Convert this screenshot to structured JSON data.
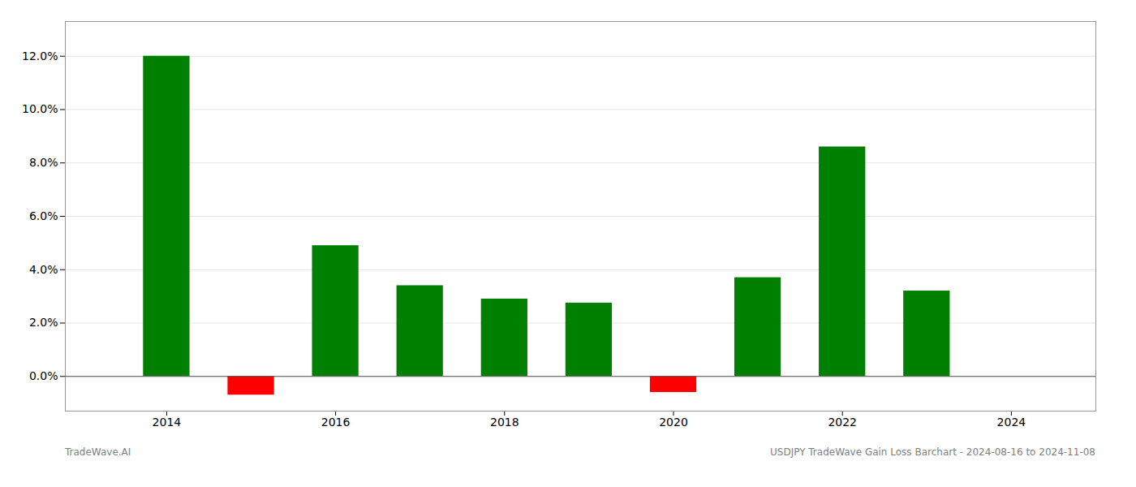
{
  "chart_data": {
    "type": "bar",
    "x": [
      2014,
      2015,
      2016,
      2017,
      2018,
      2019,
      2020,
      2021,
      2022,
      2023
    ],
    "values": [
      0.12,
      -0.007,
      0.049,
      0.034,
      0.029,
      0.0275,
      -0.006,
      0.037,
      0.086,
      0.032
    ],
    "colors": [
      "#008000",
      "#ff0000",
      "#008000",
      "#008000",
      "#008000",
      "#008000",
      "#ff0000",
      "#008000",
      "#008000",
      "#008000"
    ],
    "xlim": [
      2012.8,
      2025.0
    ],
    "xticks": [
      2014,
      2016,
      2018,
      2020,
      2022,
      2024
    ],
    "ylim": [
      -0.013,
      0.133
    ],
    "yticks": [
      {
        "value": 0.0,
        "label": "0.0%"
      },
      {
        "value": 0.02,
        "label": "2.0%"
      },
      {
        "value": 0.04,
        "label": "4.0%"
      },
      {
        "value": 0.06,
        "label": "6.0%"
      },
      {
        "value": 0.08,
        "label": "8.0%"
      },
      {
        "value": 0.1,
        "label": "10.0%"
      },
      {
        "value": 0.12,
        "label": "12.0%"
      }
    ],
    "grid": true,
    "annotations": [
      "TradeWave.AI",
      "USDJPY TradeWave Gain Loss Barchart - 2024-08-16 to 2024-11-08"
    ]
  }
}
